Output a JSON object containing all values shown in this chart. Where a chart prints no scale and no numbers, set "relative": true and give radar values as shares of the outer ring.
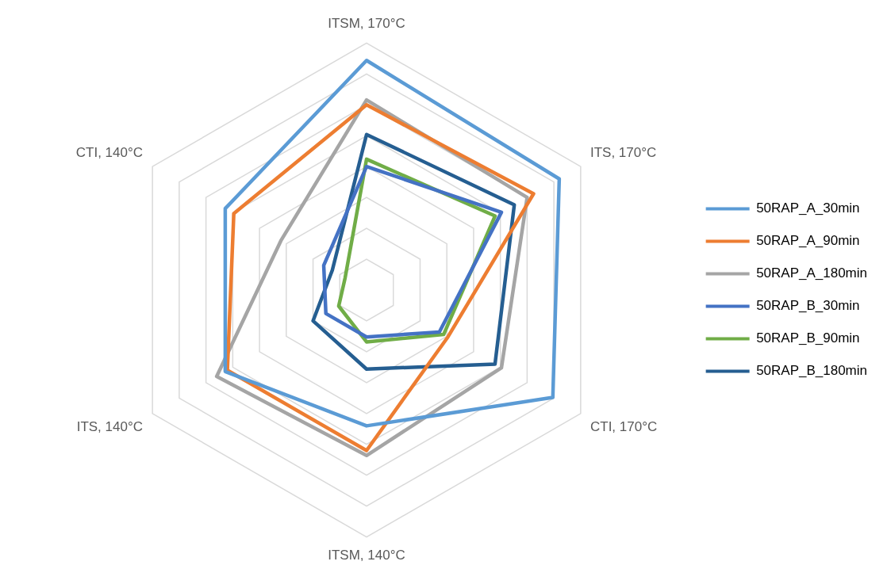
{
  "chart_data": {
    "type": "radar",
    "relative": true,
    "categories": [
      "ITSM, 170°C",
      "ITS, 170°C",
      "CTI, 170°C",
      "ITSM, 140°C",
      "ITS, 140°C",
      "CTI, 140°C"
    ],
    "series": [
      {
        "name": "50RAP_A_30min",
        "color": "#5b9bd5",
        "values": [
          0.93,
          0.9,
          0.87,
          0.55,
          0.66,
          0.66
        ]
      },
      {
        "name": "50RAP_A_90min",
        "color": "#ed7d31",
        "values": [
          0.75,
          0.78,
          0.38,
          0.65,
          0.65,
          0.62
        ]
      },
      {
        "name": "50RAP_A_180min",
        "color": "#a5a5a5",
        "values": [
          0.77,
          0.75,
          0.63,
          0.67,
          0.7,
          0.4
        ]
      },
      {
        "name": "50RAP_B_30min",
        "color": "#4472c4",
        "values": [
          0.5,
          0.63,
          0.34,
          0.19,
          0.19,
          0.2
        ]
      },
      {
        "name": "50RAP_B_90min",
        "color": "#70ad47",
        "values": [
          0.53,
          0.6,
          0.36,
          0.21,
          0.13,
          0.1
        ]
      },
      {
        "name": "50RAP_B_180min",
        "color": "#255e91",
        "values": [
          0.63,
          0.69,
          0.6,
          0.32,
          0.25,
          0.16
        ]
      }
    ],
    "grid": true,
    "legend": "right",
    "marker": "none",
    "line_style": "solid"
  }
}
